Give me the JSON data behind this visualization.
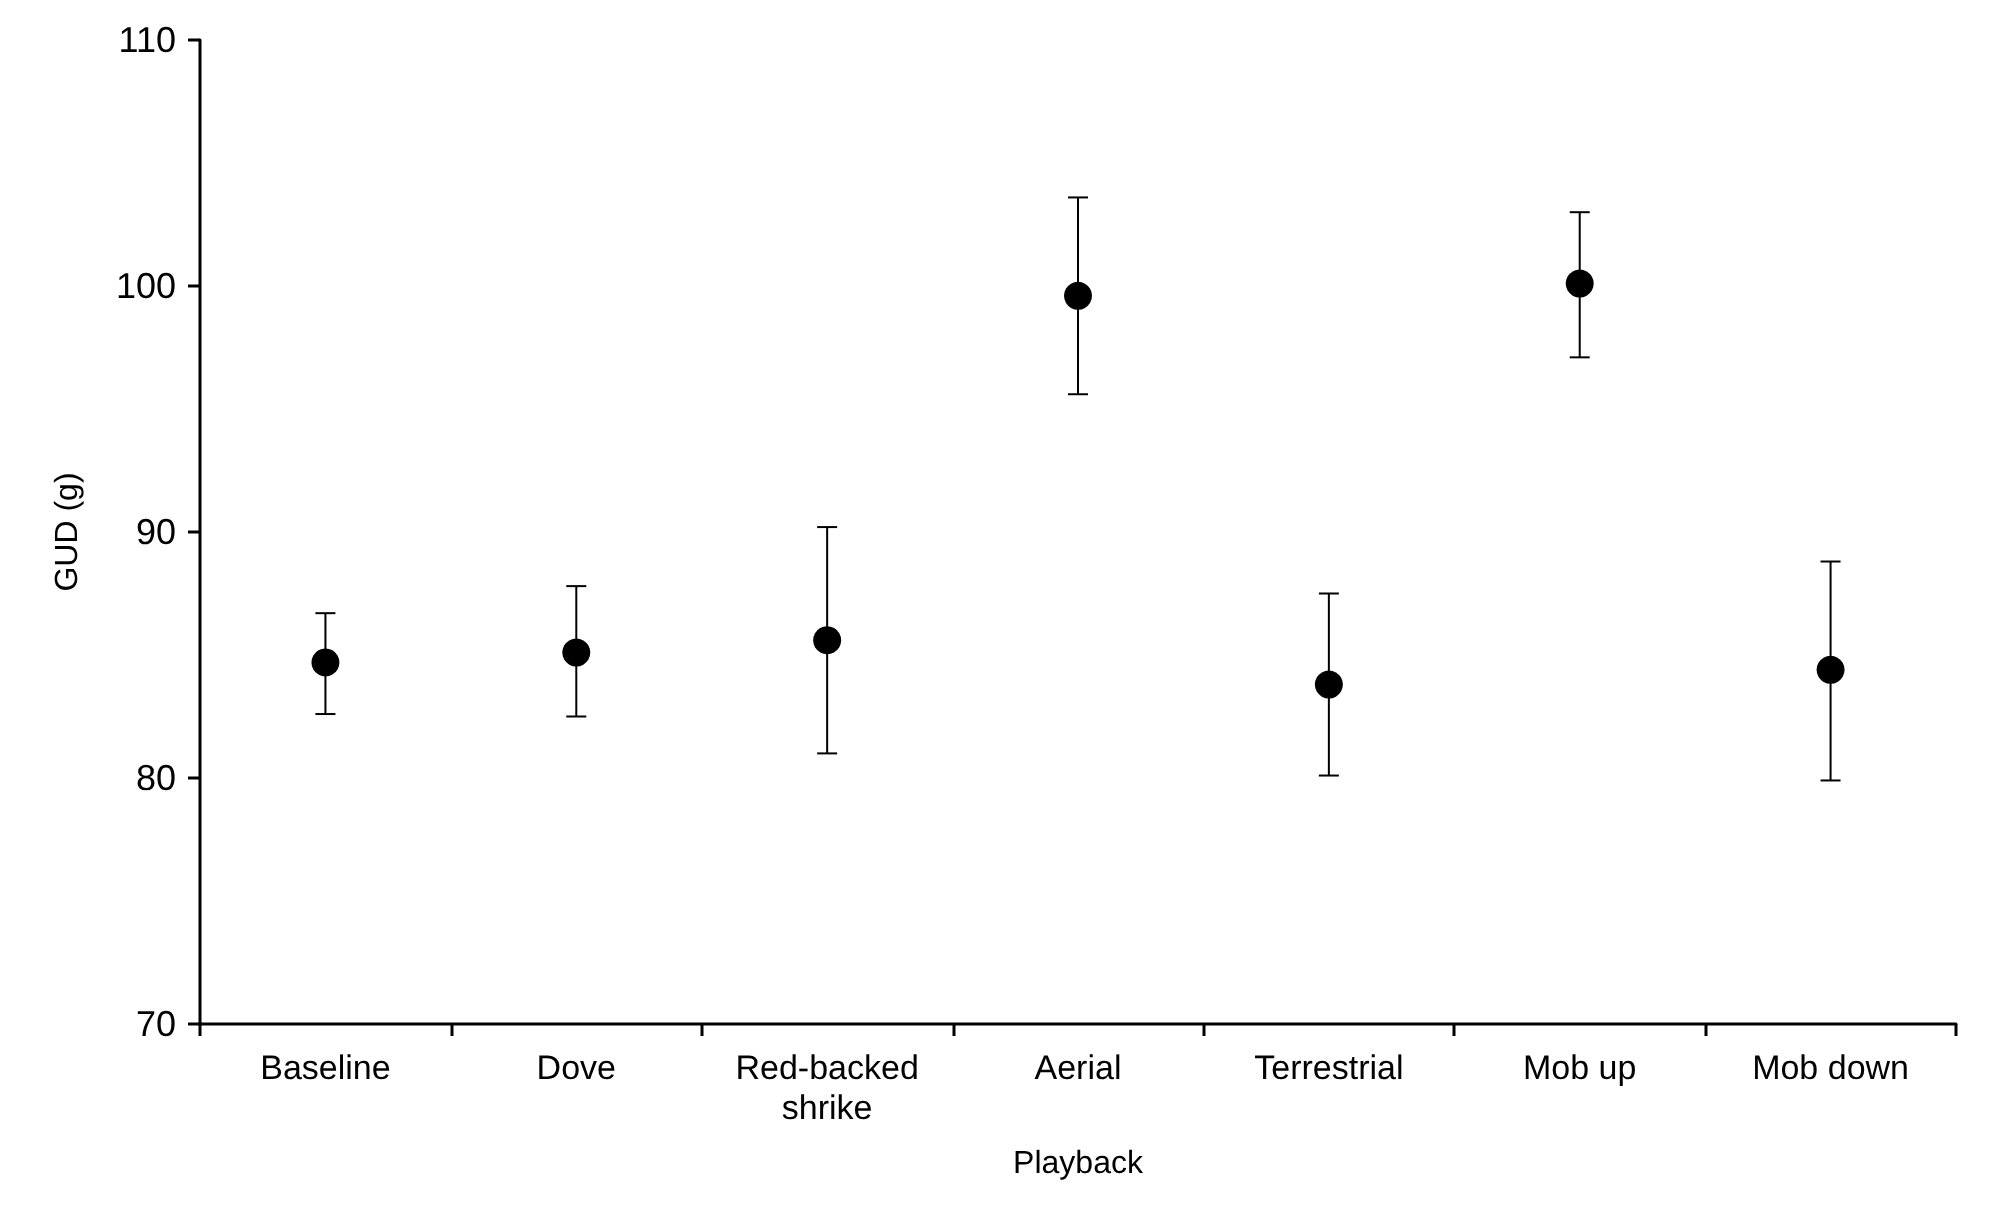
{
  "chart_data": {
    "type": "scatter",
    "xlabel": "Playback",
    "ylabel": "GUD (g)",
    "categories": [
      "Baseline",
      "Dove",
      "Red-backed shrike",
      "Aerial",
      "Terrestrial",
      "Mob up",
      "Mob down"
    ],
    "values": [
      84.7,
      85.1,
      85.6,
      99.6,
      83.8,
      100.1,
      84.4
    ],
    "errors": [
      [
        82.6,
        86.7
      ],
      [
        82.5,
        87.8
      ],
      [
        81.0,
        90.2
      ],
      [
        95.6,
        103.6
      ],
      [
        80.1,
        87.5
      ],
      [
        97.1,
        103.0
      ],
      [
        79.9,
        88.8
      ]
    ],
    "color": "#000000",
    "marker": "circle",
    "ylim": [
      70,
      110
    ],
    "yticks": [
      70,
      80,
      90,
      100,
      110
    ],
    "grid": false
  }
}
